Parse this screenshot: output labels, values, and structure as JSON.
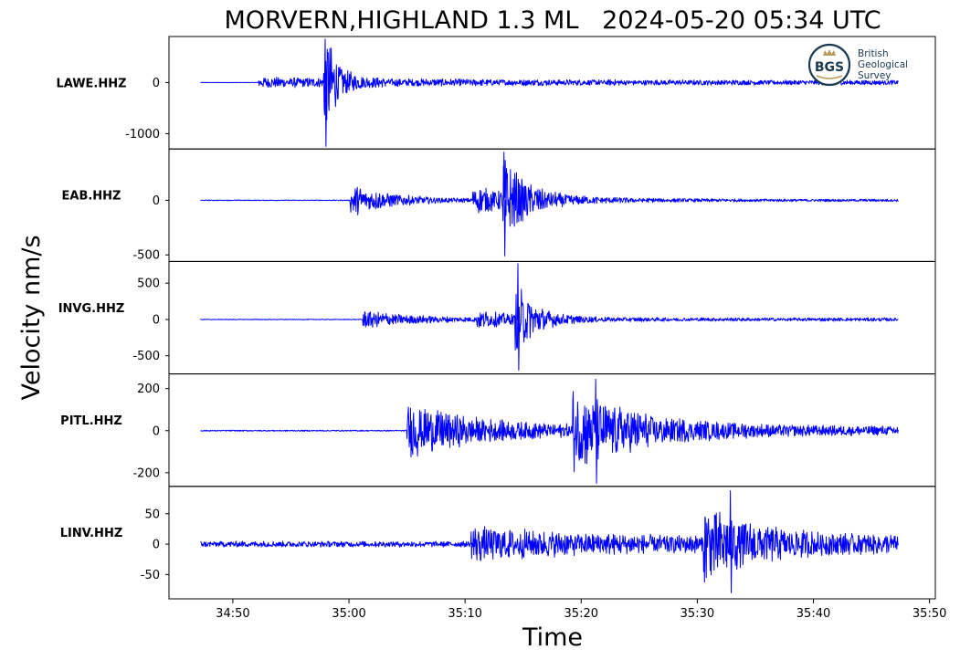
{
  "colors": {
    "trace": "#0000ff",
    "axes": "#000000",
    "background": "#ffffff",
    "logo_ring": "#1b3a52",
    "logo_gold": "#b89a5a"
  },
  "logo": {
    "abbr": "BGS",
    "lines": [
      "British",
      "Geological",
      "Survey"
    ],
    "icon": "crown-icon"
  },
  "chart_data": {
    "type": "line",
    "title": "MORVERN,HIGHLAND 1.3 ML   2024-05-20 05:34 UTC",
    "xlabel": "Time",
    "ylabel": "Velocity nm/s",
    "x_ticks": [
      "34:50",
      "35:00",
      "35:10",
      "35:20",
      "35:30",
      "35:40",
      "35:50"
    ],
    "x_tick_seconds": [
      50,
      60,
      70,
      80,
      90,
      100,
      110
    ],
    "xlim_seconds": [
      44.5,
      110.5
    ],
    "trace_window_seconds": [
      47.2,
      107.3
    ],
    "grid": false,
    "panels": [
      {
        "station": "LAWE.HHZ",
        "yticks": [
          0,
          -1000
        ],
        "ylim": [
          -1300,
          900
        ],
        "noise_before": 4,
        "noise_after": 45,
        "events": [
          {
            "t": 52.2,
            "amp": 70,
            "decay": 18
          },
          {
            "t": 57.8,
            "amp": 1150,
            "decay": 1.1
          }
        ],
        "extremes": {
          "max": 850,
          "min": -1250,
          "t": 57.9
        }
      },
      {
        "station": "EAB.HHZ",
        "yticks": [
          0,
          -500
        ],
        "ylim": [
          -560,
          470
        ],
        "noise_before": 4,
        "noise_after": 12,
        "events": [
          {
            "t": 60.1,
            "amp": 150,
            "decay": 3.5
          },
          {
            "t": 70.5,
            "amp": 120,
            "decay": 6
          },
          {
            "t": 73.2,
            "amp": 380,
            "decay": 1.8
          }
        ],
        "extremes": {
          "max": 440,
          "min": -510,
          "t": 73.3
        }
      },
      {
        "station": "INVG.HHZ",
        "yticks": [
          500,
          0,
          -500
        ],
        "ylim": [
          -750,
          800
        ],
        "noise_before": 5,
        "noise_after": 25,
        "events": [
          {
            "t": 61.2,
            "amp": 120,
            "decay": 4
          },
          {
            "t": 71.0,
            "amp": 110,
            "decay": 4
          },
          {
            "t": 74.3,
            "amp": 520,
            "decay": 1.6
          }
        ],
        "extremes": {
          "max": 770,
          "min": -700,
          "t": 74.5
        }
      },
      {
        "station": "PITL.HHZ",
        "yticks": [
          200,
          0,
          -200
        ],
        "ylim": [
          -265,
          270
        ],
        "noise_before": 3,
        "noise_after": 22,
        "events": [
          {
            "t": 65.0,
            "amp": 120,
            "decay": 6
          },
          {
            "t": 79.2,
            "amp": 180,
            "decay": 6
          }
        ],
        "extremes": {
          "max": 245,
          "min": -250,
          "t": 81.2
        }
      },
      {
        "station": "LINV.HHZ",
        "yticks": [
          50,
          0,
          -50
        ],
        "ylim": [
          -90,
          95
        ],
        "noise_before": 5,
        "noise_after": 14,
        "events": [
          {
            "t": 70.5,
            "amp": 22,
            "decay": 7
          },
          {
            "t": 90.5,
            "amp": 55,
            "decay": 5
          }
        ],
        "extremes": {
          "max": 88,
          "min": -80,
          "t": 92.8
        }
      }
    ]
  }
}
